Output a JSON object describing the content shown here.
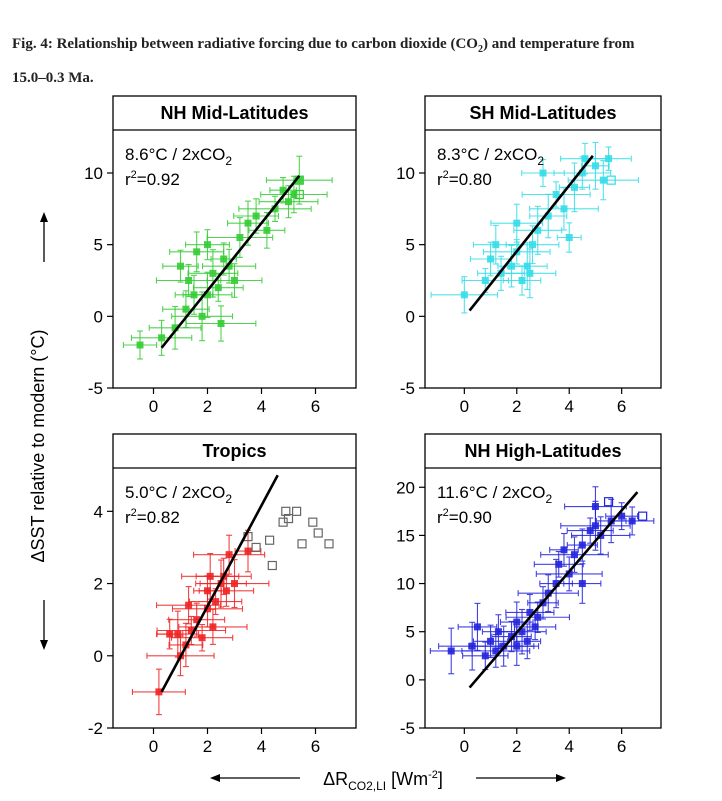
{
  "caption": {
    "label": "Fig. 4:",
    "text_a": "Relationship between radiative forcing due to carbon dioxide (CO",
    "sub": "2",
    "text_b": ") and temperature from 15.0–0.3  Ma."
  },
  "shared": {
    "ylabel": "ΔSST relative to modern (°C)",
    "xlabel_main": "ΔR",
    "xlabel_sub": "CO2,LI",
    "xlabel_unit": " [Wm",
    "xlabel_sup": "-2",
    "xlabel_end": "]"
  },
  "chart_data": [
    {
      "type": "scatter",
      "title": "NH Mid-Latitudes",
      "annotation_line1": "8.6°C / 2xCO",
      "annotation_sub": "2",
      "annotation_r2": "=0.92",
      "color": "#33cc33",
      "xlim": [
        -1.5,
        7.5
      ],
      "ylim": [
        -5,
        13
      ],
      "xticks": [
        0,
        2,
        4,
        6
      ],
      "yticks": [
        -5,
        0,
        5,
        10
      ],
      "fit": [
        [
          0.3,
          -2.2
        ],
        [
          5.4,
          9.8
        ]
      ],
      "points": [
        [
          -0.5,
          -2.0
        ],
        [
          0.3,
          -1.5
        ],
        [
          0.8,
          -0.8
        ],
        [
          1.2,
          0.5
        ],
        [
          1.5,
          1.5
        ],
        [
          1.3,
          2.5
        ],
        [
          1.8,
          0.0
        ],
        [
          2.0,
          1.5
        ],
        [
          2.2,
          3.0
        ],
        [
          2.4,
          2.0
        ],
        [
          2.6,
          4.0
        ],
        [
          2.8,
          3.5
        ],
        [
          1.6,
          4.5
        ],
        [
          2.0,
          5.0
        ],
        [
          3.2,
          5.5
        ],
        [
          3.5,
          6.5
        ],
        [
          3.8,
          7.0
        ],
        [
          4.2,
          6.0
        ],
        [
          4.5,
          7.5
        ],
        [
          5.0,
          8.0
        ],
        [
          5.2,
          8.5
        ],
        [
          5.4,
          9.5
        ],
        [
          4.8,
          8.8
        ],
        [
          3.0,
          2.5
        ],
        [
          2.5,
          -0.5
        ],
        [
          1.0,
          3.5
        ]
      ],
      "open_points": [
        [
          5.4,
          8.5
        ],
        [
          5.4,
          9.5
        ]
      ]
    },
    {
      "type": "scatter",
      "title": "SH Mid-Latitudes",
      "annotation_line1": "8.3°C / 2xCO",
      "annotation_sub": "2",
      "annotation_r2": "=0.80",
      "color": "#33dde8",
      "xlim": [
        -1.5,
        7.5
      ],
      "ylim": [
        -5,
        13
      ],
      "xticks": [
        0,
        2,
        4,
        6
      ],
      "yticks": [
        -5,
        0,
        5,
        10
      ],
      "fit": [
        [
          0.2,
          0.4
        ],
        [
          4.9,
          11.2
        ]
      ],
      "points": [
        [
          0.0,
          1.5
        ],
        [
          0.8,
          2.5
        ],
        [
          1.0,
          4.0
        ],
        [
          1.4,
          3.0
        ],
        [
          1.8,
          3.5
        ],
        [
          2.0,
          4.5
        ],
        [
          2.2,
          2.5
        ],
        [
          2.4,
          3.5
        ],
        [
          2.6,
          5.0
        ],
        [
          2.0,
          6.5
        ],
        [
          2.8,
          6.0
        ],
        [
          3.2,
          7.0
        ],
        [
          3.5,
          8.5
        ],
        [
          3.8,
          7.5
        ],
        [
          4.2,
          9.0
        ],
        [
          4.5,
          10.0
        ],
        [
          5.0,
          10.5
        ],
        [
          5.3,
          9.5
        ],
        [
          4.6,
          11.0
        ],
        [
          3.0,
          10.0
        ],
        [
          2.5,
          3.0
        ],
        [
          1.2,
          5.0
        ],
        [
          5.5,
          11.0
        ],
        [
          4.0,
          5.5
        ]
      ],
      "open_points": [
        [
          5.6,
          9.5
        ]
      ]
    },
    {
      "type": "scatter",
      "title": "Tropics",
      "annotation_line1": "5.0°C / 2xCO",
      "annotation_sub": "2",
      "annotation_r2": "=0.82",
      "color": "#ee2222",
      "xlim": [
        -1.5,
        7.5
      ],
      "ylim": [
        -2,
        5.2
      ],
      "xticks": [
        0,
        2,
        4,
        6
      ],
      "yticks": [
        -2,
        0,
        2,
        4
      ],
      "fit": [
        [
          0.3,
          -1.0
        ],
        [
          4.6,
          5.0
        ]
      ],
      "points": [
        [
          0.2,
          -1.0
        ],
        [
          0.6,
          0.6
        ],
        [
          0.9,
          0.6
        ],
        [
          1.0,
          0.0
        ],
        [
          1.2,
          0.3
        ],
        [
          1.4,
          0.7
        ],
        [
          1.6,
          1.0
        ],
        [
          1.8,
          0.5
        ],
        [
          2.0,
          1.8
        ],
        [
          2.1,
          2.2
        ],
        [
          2.0,
          1.3
        ],
        [
          2.3,
          1.5
        ],
        [
          2.5,
          2.0
        ],
        [
          2.6,
          2.2
        ],
        [
          2.7,
          1.8
        ],
        [
          2.8,
          2.8
        ],
        [
          3.0,
          2.0
        ],
        [
          3.5,
          2.9
        ],
        [
          1.3,
          1.4
        ],
        [
          2.2,
          0.8
        ]
      ],
      "open_points": [
        [
          3.5,
          3.3
        ],
        [
          3.8,
          3.0
        ],
        [
          4.3,
          3.2
        ],
        [
          4.4,
          2.5
        ],
        [
          4.8,
          3.7
        ],
        [
          4.9,
          4.0
        ],
        [
          5.0,
          3.8
        ],
        [
          5.3,
          4.0
        ],
        [
          5.5,
          3.1
        ],
        [
          5.9,
          3.7
        ],
        [
          6.1,
          3.4
        ],
        [
          6.5,
          3.1
        ]
      ]
    },
    {
      "type": "scatter",
      "title": "NH High-Latitudes",
      "annotation_line1": "11.6°C / 2xCO",
      "annotation_sub": "2",
      "annotation_r2": "=0.90",
      "color": "#2222dd",
      "xlim": [
        -1.5,
        7.5
      ],
      "ylim": [
        -5,
        22
      ],
      "xticks": [
        0,
        2,
        4,
        6
      ],
      "yticks": [
        -5,
        0,
        5,
        10,
        15,
        20
      ],
      "fit": [
        [
          0.2,
          -0.8
        ],
        [
          6.6,
          19.5
        ]
      ],
      "points": [
        [
          -0.5,
          3.0
        ],
        [
          0.3,
          3.5
        ],
        [
          0.8,
          2.5
        ],
        [
          1.0,
          4.0
        ],
        [
          1.3,
          5.0
        ],
        [
          1.5,
          3.5
        ],
        [
          1.8,
          4.5
        ],
        [
          2.0,
          6.0
        ],
        [
          2.2,
          5.0
        ],
        [
          2.4,
          4.0
        ],
        [
          2.5,
          7.0
        ],
        [
          2.7,
          5.5
        ],
        [
          3.0,
          8.0
        ],
        [
          3.2,
          9.0
        ],
        [
          3.5,
          10.0
        ],
        [
          3.6,
          12.0
        ],
        [
          4.0,
          11.0
        ],
        [
          4.2,
          13.0
        ],
        [
          4.5,
          14.0
        ],
        [
          5.0,
          16.0
        ],
        [
          5.2,
          15.0
        ],
        [
          5.6,
          16.5
        ],
        [
          6.0,
          17.0
        ],
        [
          6.4,
          16.5
        ],
        [
          5.0,
          18.0
        ],
        [
          3.8,
          13.5
        ],
        [
          2.8,
          6.5
        ],
        [
          1.2,
          3.0
        ],
        [
          0.5,
          5.5
        ],
        [
          4.8,
          15.5
        ],
        [
          2.0,
          3.5
        ],
        [
          4.5,
          10.0
        ]
      ],
      "open_points": [
        [
          5.5,
          18.5
        ],
        [
          6.8,
          17.0
        ]
      ]
    }
  ]
}
